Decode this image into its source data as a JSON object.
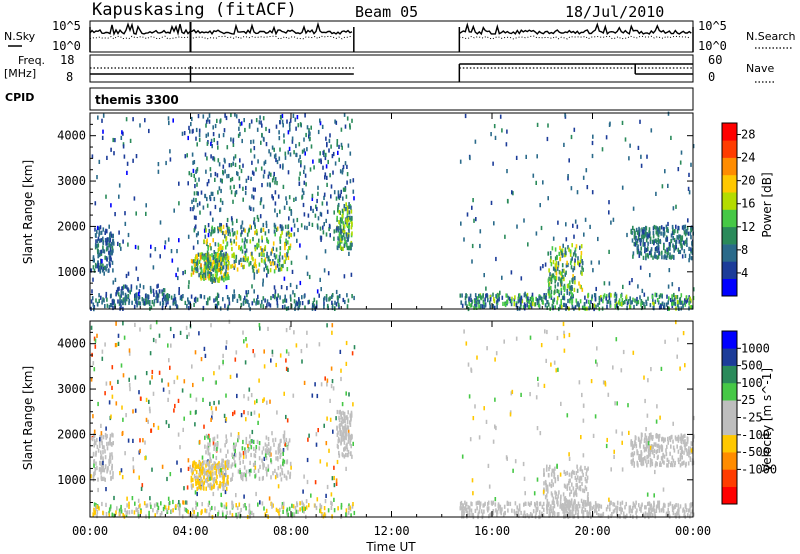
{
  "header": {
    "station": "Kapuskasing (fitACF)",
    "beam": "Beam 05",
    "date": "18/Jul/2010"
  },
  "top_panels": {
    "nsky_label": "N.Sky",
    "nsky_ticks": [
      "10^5",
      "10^0"
    ],
    "nsearch_label": "N.Search",
    "freq_label": "Freq.",
    "freq_unit": "[MHz]",
    "freq_ticks": [
      "18",
      "8"
    ],
    "nave_label": "Nave",
    "nave_ticks": [
      "60",
      "0"
    ],
    "cpid_label": "CPID",
    "cpid_value": "themis 3300"
  },
  "colors": {
    "power_scale": [
      "#0000ff",
      "#1c3c99",
      "#2a6a8a",
      "#2a8a5a",
      "#46c846",
      "#b4dc00",
      "#ffc800",
      "#ff8c00",
      "#ff3c00",
      "#ff0000"
    ],
    "velocity_scale": [
      "#ff0000",
      "#ff3c00",
      "#ff8c00",
      "#ffc800",
      "#bebebe",
      "#bebebe",
      "#46c846",
      "#2a8a5a",
      "#1c3c99",
      "#0000ff"
    ]
  },
  "chart_data": [
    {
      "type": "heatmap",
      "title": "Power",
      "ylabel": "Slant Range [km]",
      "xlabel": "",
      "x_ticks": [
        "00:00",
        "04:00",
        "08:00",
        "12:00",
        "16:00",
        "20:00",
        "00:00"
      ],
      "y_ticks": [
        "1000",
        "2000",
        "3000",
        "4000"
      ],
      "xlim": [
        0,
        24
      ],
      "ylim": [
        180,
        4500
      ],
      "colorbar_label": "Power [dB]",
      "colorbar_ticks": [
        "4",
        "8",
        "12",
        "16",
        "20",
        "24",
        "28"
      ],
      "colorbar_range": [
        0,
        30
      ],
      "data_periods": [
        [
          0,
          10.5
        ],
        [
          14.7,
          24
        ]
      ],
      "regions": [
        {
          "t": [
            0.1,
            0.9
          ],
          "r": [
            1000,
            2000
          ],
          "v": [
            4,
            10
          ],
          "n": 120
        },
        {
          "t": [
            0.0,
            10.5
          ],
          "r": [
            180,
            500
          ],
          "v": [
            4,
            12
          ],
          "n": 260
        },
        {
          "t": [
            1.0,
            3.0
          ],
          "r": [
            300,
            700
          ],
          "v": [
            4,
            10
          ],
          "n": 80
        },
        {
          "t": [
            0.0,
            10.5
          ],
          "r": [
            500,
            4500
          ],
          "v": [
            2,
            10
          ],
          "n": 320
        },
        {
          "t": [
            4.0,
            5.5
          ],
          "r": [
            800,
            1400
          ],
          "v": [
            6,
            22
          ],
          "n": 220
        },
        {
          "t": [
            4.5,
            8.0
          ],
          "r": [
            1000,
            2000
          ],
          "v": [
            6,
            20
          ],
          "n": 260
        },
        {
          "t": [
            9.8,
            10.4
          ],
          "r": [
            1500,
            2500
          ],
          "v": [
            6,
            18
          ],
          "n": 120
        },
        {
          "t": [
            4.0,
            10.4
          ],
          "r": [
            1800,
            4500
          ],
          "v": [
            4,
            12
          ],
          "n": 360
        },
        {
          "t": [
            14.7,
            24
          ],
          "r": [
            180,
            500
          ],
          "v": [
            4,
            16
          ],
          "n": 420
        },
        {
          "t": [
            18.2,
            19.6
          ],
          "r": [
            500,
            1600
          ],
          "v": [
            6,
            20
          ],
          "n": 160
        },
        {
          "t": [
            21.5,
            24
          ],
          "r": [
            1300,
            2000
          ],
          "v": [
            4,
            12
          ],
          "n": 260
        },
        {
          "t": [
            14.7,
            24
          ],
          "r": [
            500,
            4500
          ],
          "v": [
            4,
            10
          ],
          "n": 160
        }
      ]
    },
    {
      "type": "heatmap",
      "title": "Velocity",
      "ylabel": "Slant Range [km]",
      "xlabel": "Time UT",
      "x_ticks": [
        "00:00",
        "04:00",
        "08:00",
        "12:00",
        "16:00",
        "20:00",
        "00:00"
      ],
      "y_ticks": [
        "1000",
        "2000",
        "3000",
        "4000"
      ],
      "xlim": [
        0,
        24
      ],
      "ylim": [
        180,
        4500
      ],
      "colorbar_label": "Velocity [m s^-1]",
      "colorbar_ticks": [
        "1000",
        "500",
        "100",
        "25",
        "-25",
        "-100",
        "-500",
        "-1000"
      ],
      "colorbar_range": [
        -1250,
        1250
      ],
      "data_periods": [
        [
          0,
          10.5
        ],
        [
          14.7,
          24
        ]
      ],
      "regions": [
        {
          "t": [
            0.1,
            0.9
          ],
          "r": [
            1000,
            2000
          ],
          "v": [
            -25,
            25
          ],
          "n": 100
        },
        {
          "t": [
            0.0,
            10.5
          ],
          "r": [
            180,
            500
          ],
          "v": [
            -500,
            500
          ],
          "n": 260
        },
        {
          "t": [
            0.0,
            10.5
          ],
          "r": [
            500,
            4500
          ],
          "v": [
            -1000,
            1000
          ],
          "n": 380
        },
        {
          "t": [
            4.0,
            5.5
          ],
          "r": [
            800,
            1400
          ],
          "v": [
            -500,
            -100
          ],
          "n": 200
        },
        {
          "t": [
            4.5,
            8.0
          ],
          "r": [
            1000,
            2000
          ],
          "v": [
            50,
            300
          ],
          "n": 220
        },
        {
          "t": [
            9.8,
            10.4
          ],
          "r": [
            1500,
            2500
          ],
          "v": [
            80,
            200
          ],
          "n": 120
        },
        {
          "t": [
            14.7,
            24
          ],
          "r": [
            180,
            500
          ],
          "v": [
            -25,
            25
          ],
          "n": 420
        },
        {
          "t": [
            18.0,
            19.8
          ],
          "r": [
            400,
            1300
          ],
          "v": [
            -25,
            25
          ],
          "n": 160
        },
        {
          "t": [
            21.5,
            24
          ],
          "r": [
            1300,
            2000
          ],
          "v": [
            -25,
            25
          ],
          "n": 240
        },
        {
          "t": [
            14.7,
            24
          ],
          "r": [
            500,
            4500
          ],
          "v": [
            -500,
            500
          ],
          "n": 140
        }
      ]
    }
  ]
}
